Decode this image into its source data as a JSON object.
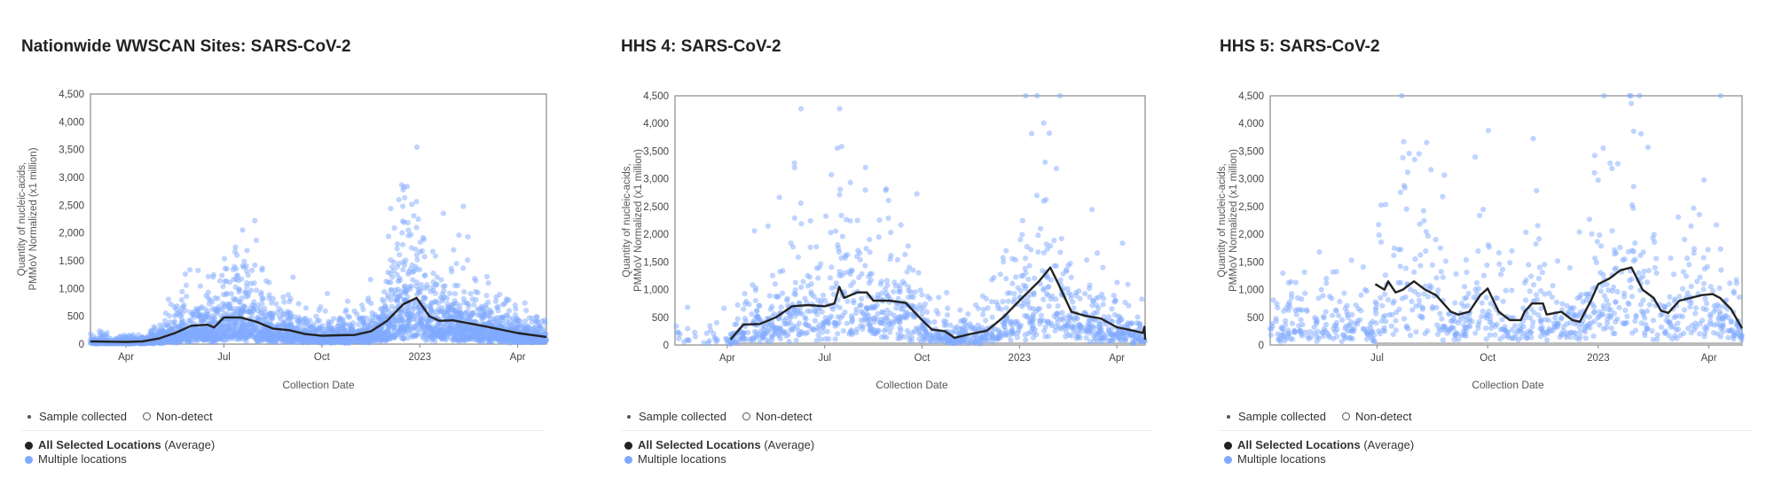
{
  "legend": {
    "sample_collected": "Sample collected",
    "non_detect": "Non-detect",
    "average_bold": "All Selected Locations",
    "average_suffix": "(Average)",
    "multiple": "Multiple locations"
  },
  "colors": {
    "average": "#222222",
    "points": "#7fa9ff",
    "nondetect": "#bbbbbb"
  },
  "chart_data": [
    {
      "type": "scatter",
      "title": "Nationwide WWSCAN Sites: SARS-CoV-2",
      "xlabel": "Collection Date",
      "ylabel_line1": "Quantity of nucleic-acids,",
      "ylabel_line2": "PMMoV Normalized (x1 million)",
      "x_unit": "months since Jan 2022",
      "xlim": [
        1.91,
        15.88
      ],
      "ylim": [
        0,
        4500
      ],
      "yticks": [
        0,
        500,
        1000,
        1500,
        2000,
        2500,
        3000,
        3500,
        4000,
        4500
      ],
      "ytick_labels": [
        "0",
        "500",
        "1,000",
        "1,500",
        "2,000",
        "2,500",
        "3,000",
        "3,500",
        "4,000",
        "4,500"
      ],
      "xticks": [
        3,
        6,
        9,
        12,
        15
      ],
      "xtick_labels": [
        "Apr",
        "Jul",
        "Oct",
        "2023",
        "Apr"
      ],
      "point_count_approx": 3500,
      "average_series": [
        [
          1.91,
          50
        ],
        [
          3,
          40
        ],
        [
          3.5,
          50
        ],
        [
          4,
          100
        ],
        [
          4.5,
          200
        ],
        [
          5,
          330
        ],
        [
          5.5,
          350
        ],
        [
          5.7,
          300
        ],
        [
          6,
          480
        ],
        [
          6.5,
          480
        ],
        [
          7,
          400
        ],
        [
          7.5,
          280
        ],
        [
          8,
          250
        ],
        [
          8.5,
          180
        ],
        [
          9,
          150
        ],
        [
          9.5,
          160
        ],
        [
          10,
          165
        ],
        [
          10.5,
          230
        ],
        [
          11,
          420
        ],
        [
          11.5,
          720
        ],
        [
          11.9,
          830
        ],
        [
          12.3,
          500
        ],
        [
          12.6,
          420
        ],
        [
          13,
          430
        ],
        [
          14,
          320
        ],
        [
          15,
          200
        ],
        [
          15.88,
          130
        ]
      ]
    },
    {
      "type": "scatter",
      "title": "HHS 4: SARS-CoV-2",
      "xlabel": "Collection Date",
      "ylabel_line1": "Quantity of nucleic-acids,",
      "ylabel_line2": "PMMoV Normalized (x1 million)",
      "x_unit": "months since Jan 2022",
      "xlim": [
        1.39,
        15.87
      ],
      "ylim": [
        0,
        4500
      ],
      "yticks": [
        0,
        500,
        1000,
        1500,
        2000,
        2500,
        3000,
        3500,
        4000,
        4500
      ],
      "ytick_labels": [
        "0",
        "500",
        "1,000",
        "1,500",
        "2,000",
        "2,500",
        "3,000",
        "3,500",
        "4,000",
        "4,500"
      ],
      "xticks": [
        3,
        6,
        9,
        12,
        15
      ],
      "xtick_labels": [
        "Apr",
        "Jul",
        "Oct",
        "2023",
        "Apr"
      ],
      "point_count_approx": 1400,
      "average_series": [
        [
          3.1,
          100
        ],
        [
          3.5,
          370
        ],
        [
          4,
          380
        ],
        [
          4.5,
          500
        ],
        [
          5,
          700
        ],
        [
          5.5,
          720
        ],
        [
          6,
          700
        ],
        [
          6.3,
          750
        ],
        [
          6.45,
          1050
        ],
        [
          6.6,
          850
        ],
        [
          7,
          950
        ],
        [
          7.3,
          950
        ],
        [
          7.5,
          800
        ],
        [
          8,
          800
        ],
        [
          8.5,
          760
        ],
        [
          9,
          450
        ],
        [
          9.3,
          280
        ],
        [
          9.7,
          250
        ],
        [
          10,
          130
        ],
        [
          10.5,
          200
        ],
        [
          11,
          260
        ],
        [
          11.5,
          500
        ],
        [
          12,
          800
        ],
        [
          12.6,
          1150
        ],
        [
          12.95,
          1400
        ],
        [
          13.2,
          1100
        ],
        [
          13.6,
          600
        ],
        [
          14,
          530
        ],
        [
          14.5,
          480
        ],
        [
          15,
          320
        ],
        [
          15.5,
          260
        ],
        [
          15.8,
          220
        ],
        [
          15.85,
          330
        ],
        [
          15.87,
          100
        ]
      ]
    },
    {
      "type": "scatter",
      "title": "HHS 5: SARS-CoV-2",
      "xlabel": "Collection Date",
      "ylabel_line1": "Quantity of nucleic-acids,",
      "ylabel_line2": "PMMoV Normalized (x1 million)",
      "x_unit": "months since Jan 2022",
      "xlim": [
        3.1,
        15.9
      ],
      "ylim": [
        0,
        4500
      ],
      "yticks": [
        0,
        500,
        1000,
        1500,
        2000,
        2500,
        3000,
        3500,
        4000,
        4500
      ],
      "ytick_labels": [
        "0",
        "500",
        "1,000",
        "1,500",
        "2,000",
        "2,500",
        "3,000",
        "3,500",
        "4,000",
        "4,500"
      ],
      "xticks": [
        6,
        9,
        12,
        15
      ],
      "xtick_labels": [
        "Jul",
        "Oct",
        "2023",
        "Apr"
      ],
      "point_count_approx": 900,
      "average_series": [
        [
          5.95,
          1100
        ],
        [
          6.2,
          1000
        ],
        [
          6.3,
          1150
        ],
        [
          6.5,
          950
        ],
        [
          6.7,
          1000
        ],
        [
          7,
          1150
        ],
        [
          7.3,
          1000
        ],
        [
          7.6,
          900
        ],
        [
          8,
          600
        ],
        [
          8.2,
          550
        ],
        [
          8.5,
          600
        ],
        [
          8.8,
          900
        ],
        [
          9,
          1020
        ],
        [
          9.3,
          600
        ],
        [
          9.6,
          450
        ],
        [
          9.9,
          450
        ],
        [
          10,
          600
        ],
        [
          10.2,
          750
        ],
        [
          10.5,
          750
        ],
        [
          10.6,
          550
        ],
        [
          11,
          600
        ],
        [
          11.3,
          450
        ],
        [
          11.5,
          420
        ],
        [
          11.8,
          800
        ],
        [
          12,
          1100
        ],
        [
          12.3,
          1200
        ],
        [
          12.6,
          1350
        ],
        [
          12.9,
          1400
        ],
        [
          13.2,
          1000
        ],
        [
          13.5,
          850
        ],
        [
          13.7,
          620
        ],
        [
          13.9,
          580
        ],
        [
          14.2,
          800
        ],
        [
          14.5,
          850
        ],
        [
          14.8,
          900
        ],
        [
          15.1,
          920
        ],
        [
          15.3,
          850
        ],
        [
          15.6,
          650
        ],
        [
          15.9,
          300
        ]
      ]
    }
  ]
}
